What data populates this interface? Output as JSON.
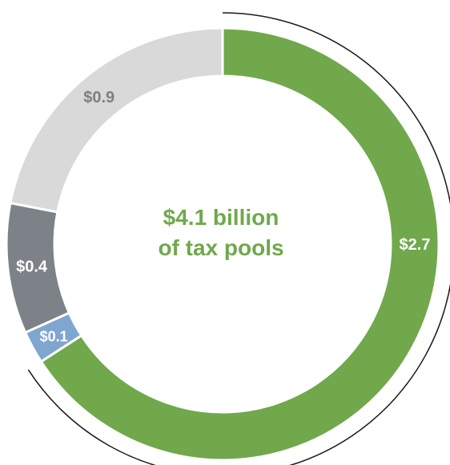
{
  "chart_data": {
    "type": "pie",
    "title": "",
    "center_label": [
      "$4.1 billion",
      "of tax pools"
    ],
    "slices": [
      {
        "label": "$2.7",
        "value": 2.7,
        "color": "#70a84b",
        "label_color": "#ffffff"
      },
      {
        "label": "$0.1",
        "value": 0.1,
        "color": "#7fa6cf",
        "label_color": "#ffffff"
      },
      {
        "label": "$0.4",
        "value": 0.4,
        "color": "#7c8287",
        "label_color": "#ffffff"
      },
      {
        "label": "$0.9",
        "value": 0.9,
        "color": "#d9d9d9",
        "label_color": "#7f7f7f"
      }
    ],
    "highlight_bracket": "thin outer arc spanning the $2.7 segment",
    "background": "#ffffff"
  }
}
